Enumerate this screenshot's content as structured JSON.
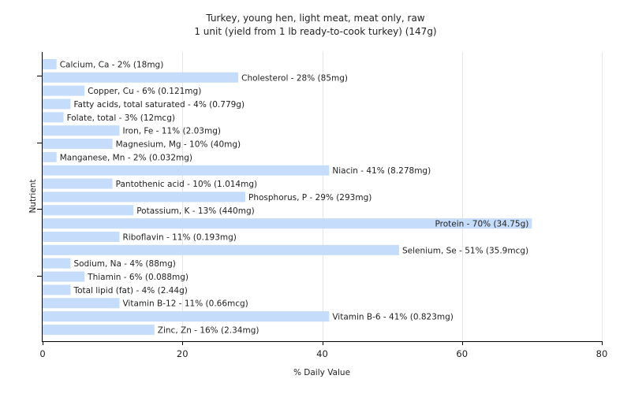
{
  "chart_data": {
    "type": "bar",
    "orientation": "horizontal",
    "title": "Turkey, young hen, light meat, meat only, raw",
    "subtitle": "1 unit (yield from 1 lb ready-to-cook turkey) (147g)",
    "xlabel": "% Daily Value",
    "ylabel": "Nutrient",
    "xlim": [
      0,
      80
    ],
    "xticks": [
      0,
      20,
      40,
      60,
      80
    ],
    "grid": true,
    "bar_color": "#c6dcfb",
    "categories": [
      "Calcium, Ca - 2% (18mg)",
      "Cholesterol - 28% (85mg)",
      "Copper, Cu - 6% (0.121mg)",
      "Fatty acids, total saturated - 4% (0.779g)",
      "Folate, total - 3% (12mcg)",
      "Iron, Fe - 11% (2.03mg)",
      "Magnesium, Mg - 10% (40mg)",
      "Manganese, Mn - 2% (0.032mg)",
      "Niacin - 41% (8.278mg)",
      "Pantothenic acid - 10% (1.014mg)",
      "Phosphorus, P - 29% (293mg)",
      "Potassium, K - 13% (440mg)",
      "Protein - 70% (34.75g)",
      "Riboflavin - 11% (0.193mg)",
      "Selenium, Se - 51% (35.9mcg)",
      "Sodium, Na - 4% (88mg)",
      "Thiamin - 6% (0.088mg)",
      "Total lipid (fat) - 4% (2.44g)",
      "Vitamin B-12 - 11% (0.66mcg)",
      "Vitamin B-6 - 41% (0.823mg)",
      "Zinc, Zn - 16% (2.34mg)"
    ],
    "values": [
      2,
      28,
      6,
      4,
      3,
      11,
      10,
      2,
      41,
      10,
      29,
      13,
      70,
      11,
      51,
      4,
      6,
      4,
      11,
      41,
      16
    ]
  }
}
